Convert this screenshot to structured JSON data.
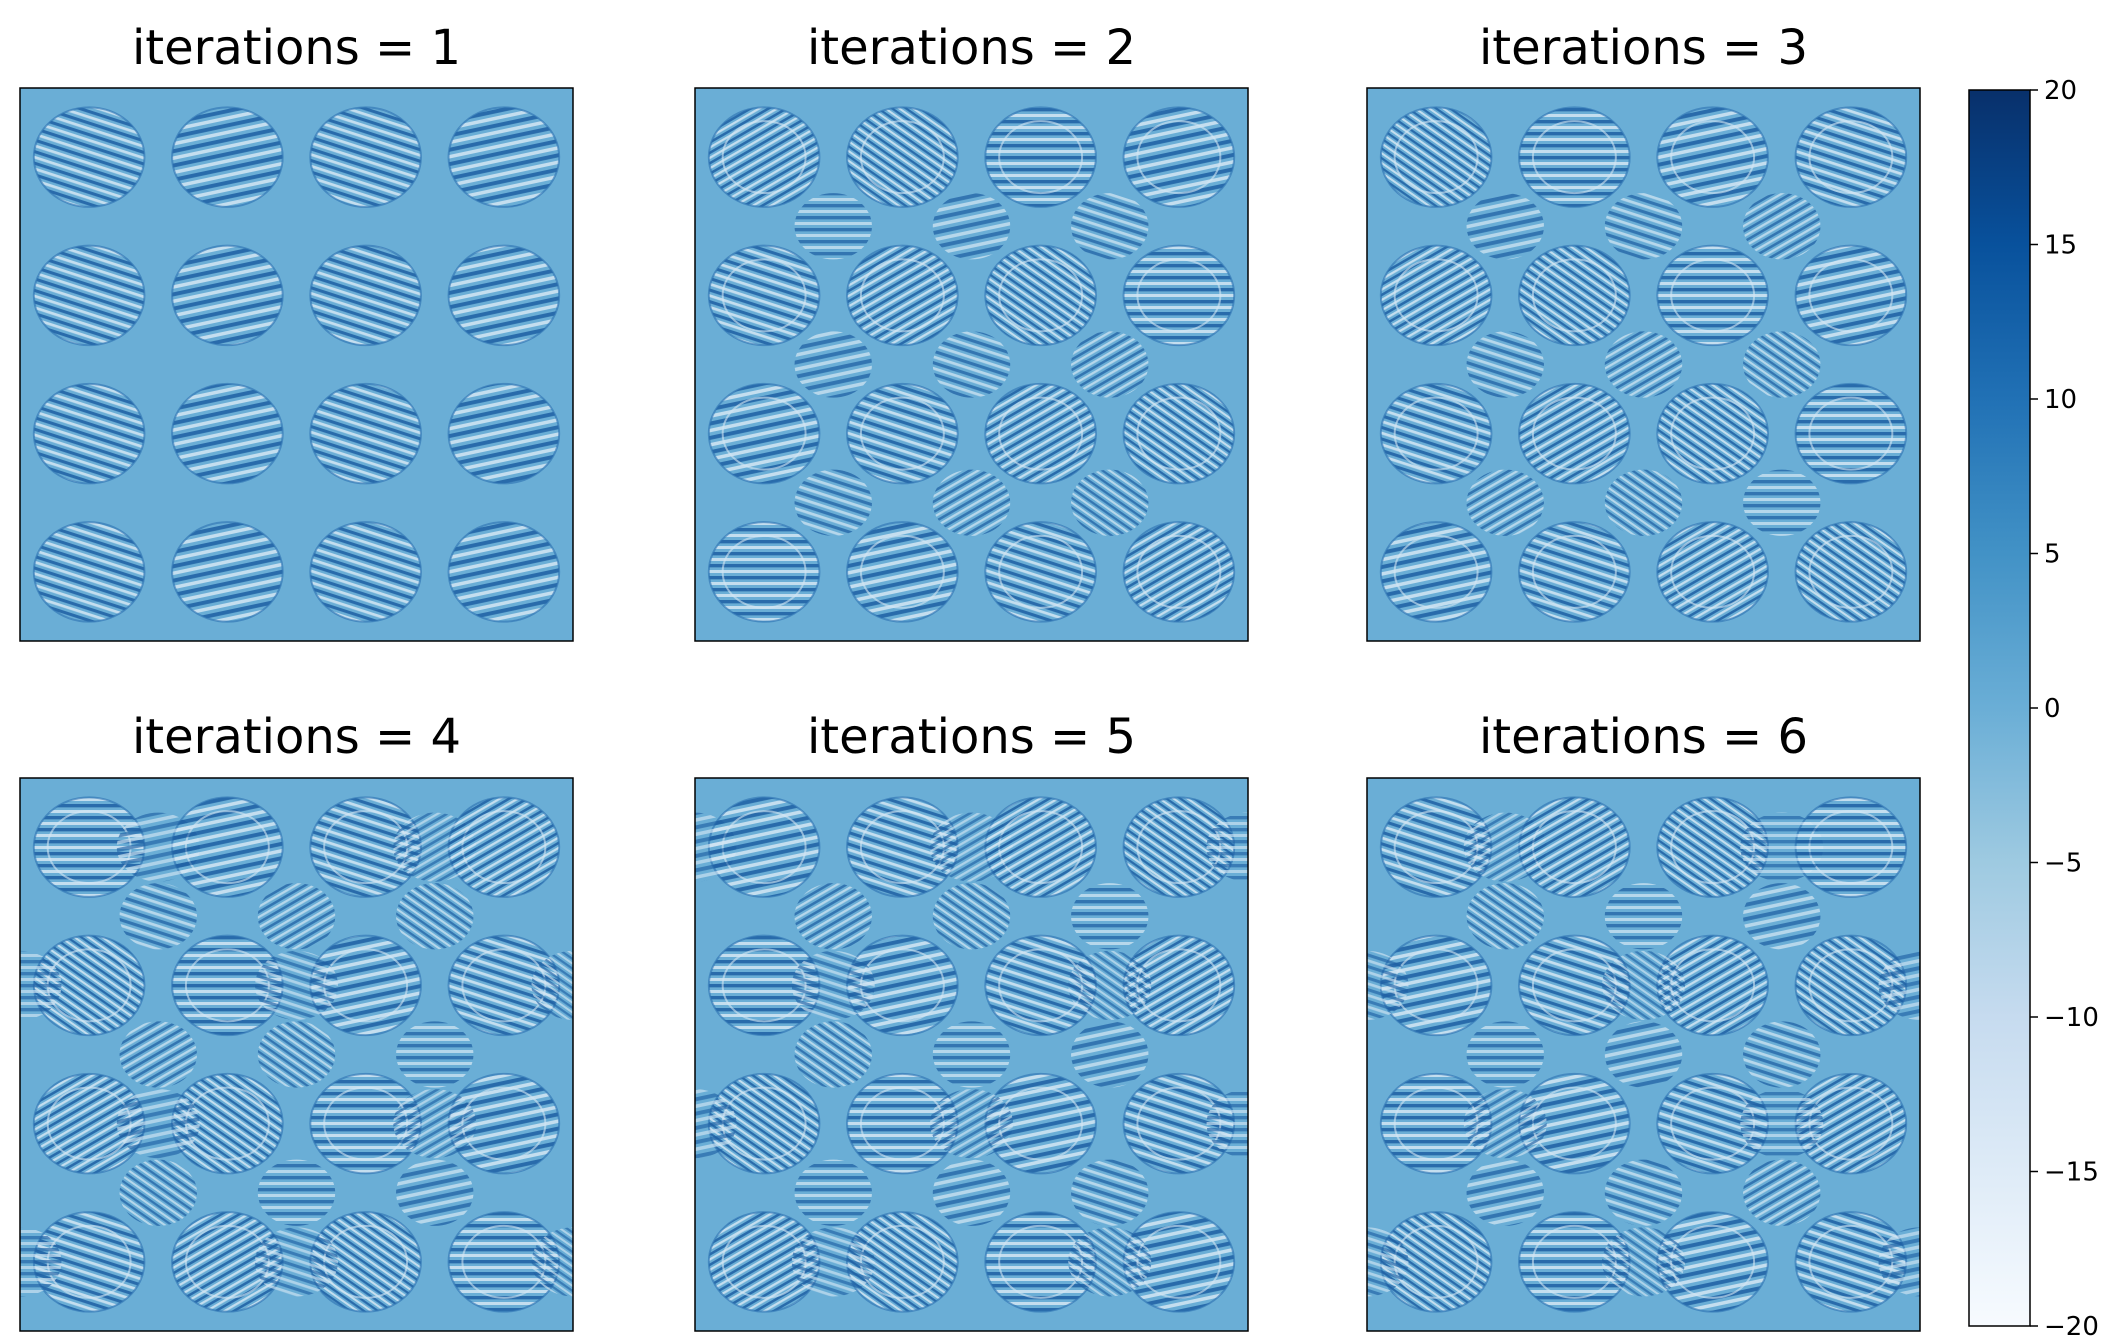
{
  "chart_data": {
    "type": "heatmap",
    "colormap": "Blues",
    "colors": {
      "low": "#f7fbff",
      "mid": "#6aaed6",
      "high": "#08306b",
      "frame": "#000000"
    },
    "panels": [
      {
        "title": "iterations = 1",
        "iterations": 1,
        "value": 0
      },
      {
        "title": "iterations = 2",
        "iterations": 2,
        "value": 0
      },
      {
        "title": "iterations = 3",
        "iterations": 3,
        "value": 0
      },
      {
        "title": "iterations = 4",
        "iterations": 4,
        "value": 0
      },
      {
        "title": "iterations = 5",
        "iterations": 5,
        "value": 0
      },
      {
        "title": "iterations = 6",
        "iterations": 6,
        "value": 0
      }
    ],
    "colorbar": {
      "range": [
        -20,
        20
      ],
      "ticks": [
        20,
        15,
        10,
        5,
        0,
        -5,
        -10,
        -15,
        -20
      ],
      "tick_labels": [
        "20",
        "15",
        "10",
        "5",
        "0",
        "−5",
        "−10",
        "−15",
        "−20"
      ]
    }
  }
}
